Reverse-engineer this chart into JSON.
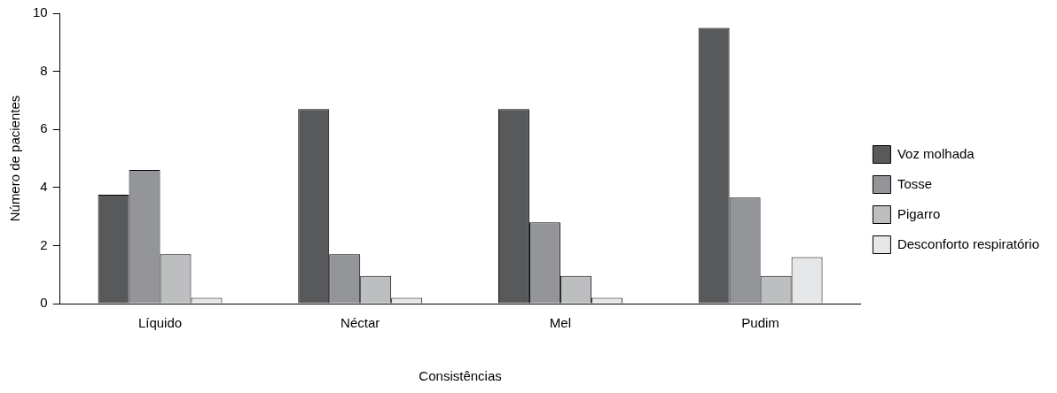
{
  "chart_data": {
    "type": "bar",
    "xlabel": "Consistências",
    "ylabel": "Número de pacientes",
    "categories": [
      "Líquido",
      "Néctar",
      "Mel",
      "Pudim"
    ],
    "series": [
      {
        "name": "Voz molhada",
        "color": "#58595b",
        "values": [
          3.75,
          6.7,
          6.7,
          9.5
        ]
      },
      {
        "name": "Tosse",
        "color": "#939598",
        "values": [
          4.6,
          1.7,
          2.8,
          3.65
        ]
      },
      {
        "name": "Pigarro",
        "color": "#bcbec0",
        "values": [
          1.7,
          0.95,
          0.95,
          0.95
        ]
      },
      {
        "name": "Desconforto respiratório",
        "color": "#e6e7e8",
        "values": [
          0.2,
          0.2,
          0.2,
          1.6
        ]
      }
    ],
    "ylim": [
      0,
      10
    ],
    "yticks": [
      0,
      2,
      4,
      6,
      8,
      10
    ],
    "legend": "right"
  }
}
